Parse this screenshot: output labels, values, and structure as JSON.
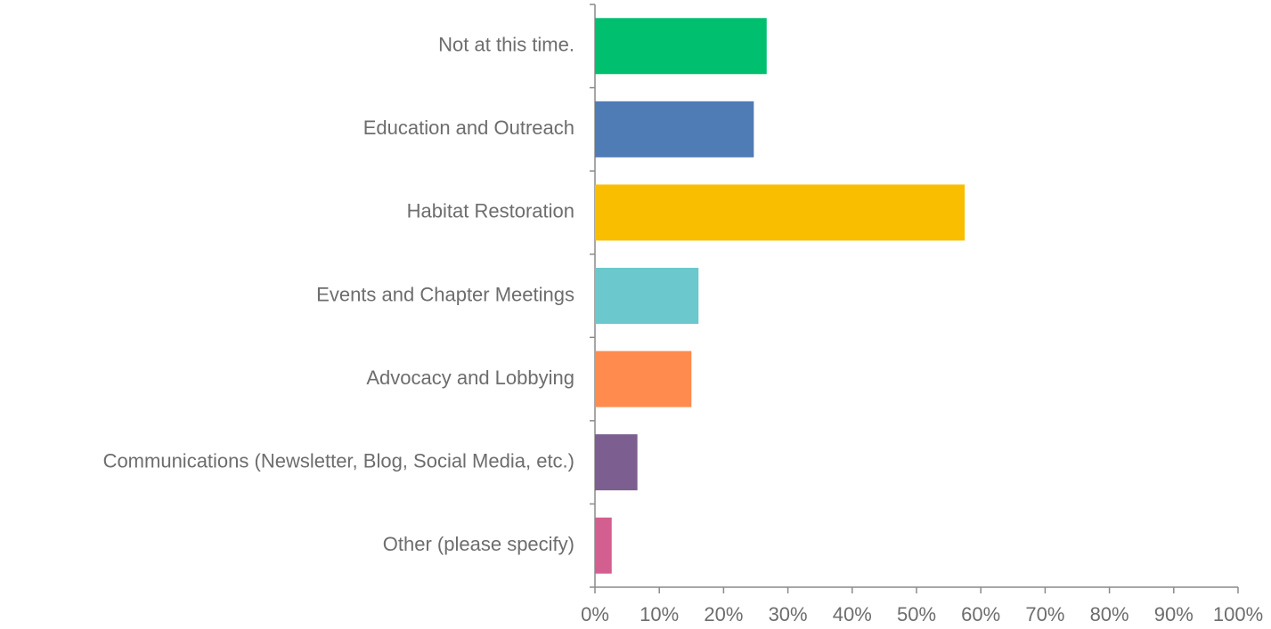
{
  "chart_data": {
    "type": "barh",
    "categories": [
      "Not at this time.",
      "Education and Outreach",
      "Habitat Restoration",
      "Events and Chapter Meetings",
      "Advocacy and Lobbying",
      "Communications (Newsletter, Blog, Social Media, etc.)",
      "Other (please specify)"
    ],
    "values": [
      26.7,
      24.7,
      57.5,
      16.1,
      15.0,
      6.6,
      2.6
    ],
    "colors": [
      "#00bf6f",
      "#507cb6",
      "#f9be00",
      "#6bc8cd",
      "#ff8b4f",
      "#7d5e90",
      "#d25f90"
    ],
    "xlim": [
      0,
      100
    ],
    "xticks": [
      {
        "value": 0,
        "label": "0%"
      },
      {
        "value": 10,
        "label": "10%"
      },
      {
        "value": 20,
        "label": "20%"
      },
      {
        "value": 30,
        "label": "30%"
      },
      {
        "value": 40,
        "label": "40%"
      },
      {
        "value": 50,
        "label": "50%"
      },
      {
        "value": 60,
        "label": "60%"
      },
      {
        "value": 70,
        "label": "70%"
      },
      {
        "value": 80,
        "label": "80%"
      },
      {
        "value": 90,
        "label": "90%"
      },
      {
        "value": 100,
        "label": "100%"
      }
    ],
    "grid": false
  }
}
